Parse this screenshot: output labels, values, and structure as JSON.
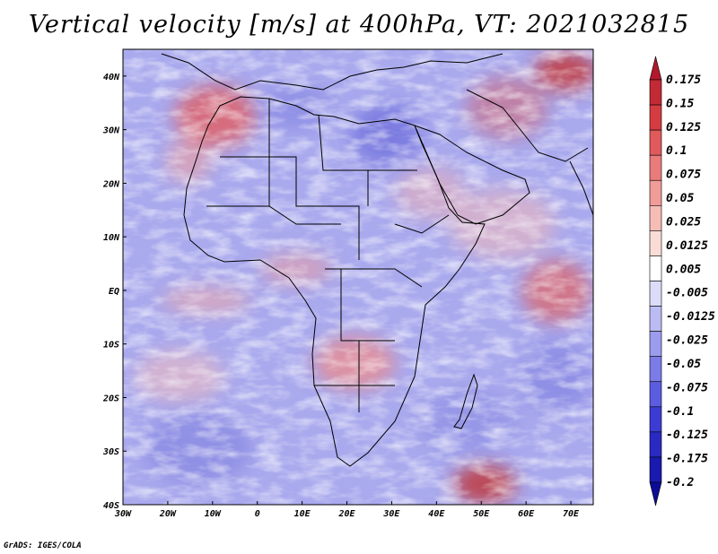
{
  "title": "Vertical velocity [m/s] at 400hPa, VT: 2021032815",
  "credit": "GrADS: IGES/COLA",
  "map": {
    "lat_labels": [
      "40N",
      "30N",
      "20N",
      "10N",
      "EQ",
      "10S",
      "20S",
      "30S",
      "40S"
    ],
    "lon_labels": [
      "30W",
      "20W",
      "10W",
      "0",
      "10E",
      "20E",
      "30E",
      "40E",
      "50E",
      "60E",
      "70E"
    ],
    "lat_range": [
      -40,
      45
    ],
    "lon_range": [
      -30,
      75
    ]
  },
  "colorbar": {
    "labels": [
      "0.175",
      "0.15",
      "0.125",
      "0.1",
      "0.075",
      "0.05",
      "0.025",
      "0.0125",
      "0.005",
      "-0.005",
      "-0.0125",
      "-0.025",
      "-0.05",
      "-0.075",
      "-0.1",
      "-0.125",
      "-0.175",
      "-0.2"
    ],
    "colors": [
      "#b2182b",
      "#c22a35",
      "#d43c42",
      "#e05a5c",
      "#e97c7b",
      "#f09c98",
      "#f6bcb6",
      "#fadcd6",
      "#ffffff",
      "#dcdcf8",
      "#bcbcf4",
      "#9c9cef",
      "#7c7ce8",
      "#5c5ce0",
      "#3c3cd4",
      "#2a2ac2",
      "#1a1ab0",
      "#0c0c96"
    ]
  }
}
